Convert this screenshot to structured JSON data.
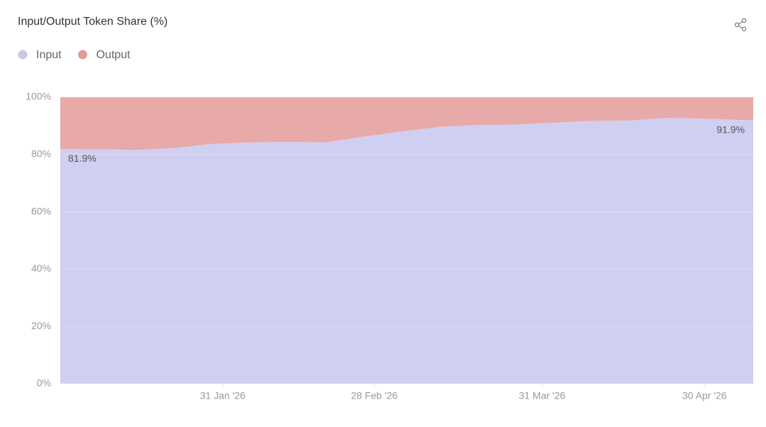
{
  "chart_data": {
    "type": "stacked-area",
    "title": "Input/Output Token Share (%)",
    "x": [
      "2026-01-01",
      "2026-01-08",
      "2026-01-15",
      "2026-01-22",
      "2026-01-29",
      "2026-02-05",
      "2026-02-12",
      "2026-02-19",
      "2026-02-26",
      "2026-03-05",
      "2026-03-12",
      "2026-03-19",
      "2026-03-26",
      "2026-04-02",
      "2026-04-09",
      "2026-04-16",
      "2026-04-23",
      "2026-04-30",
      "2026-05-09"
    ],
    "series": [
      {
        "name": "Input",
        "color": "#cfcff2",
        "legend_color": "#c8c8ef",
        "values": [
          81.9,
          81.8,
          81.6,
          82.2,
          83.7,
          84.2,
          84.4,
          84.2,
          86.2,
          88.0,
          89.6,
          90.3,
          90.4,
          91.1,
          91.7,
          91.8,
          92.8,
          92.5,
          91.9
        ],
        "value_labels": [
          "81.9%",
          null,
          null,
          null,
          null,
          null,
          null,
          null,
          null,
          null,
          null,
          null,
          null,
          null,
          null,
          null,
          null,
          null,
          "91.9%"
        ]
      },
      {
        "name": "Output",
        "color": "#e8aaa8",
        "legend_color": "#e39b98",
        "values": [
          18.1,
          18.2,
          18.4,
          17.8,
          16.3,
          15.8,
          15.6,
          15.8,
          13.8,
          12.0,
          10.4,
          9.7,
          9.6,
          8.9,
          8.3,
          8.2,
          7.2,
          7.5,
          8.1
        ]
      }
    ],
    "xlim": [
      "2026-01-01",
      "2026-05-09"
    ],
    "xticks": [
      {
        "value": "2026-01-31",
        "label": "31 Jan '26"
      },
      {
        "value": "2026-02-28",
        "label": "28 Feb '26"
      },
      {
        "value": "2026-03-31",
        "label": "31 Mar '26"
      },
      {
        "value": "2026-04-30",
        "label": "30 Apr '26"
      }
    ],
    "ylim": [
      0,
      100
    ],
    "yticks": [
      {
        "value": 0,
        "label": "0%"
      },
      {
        "value": 20,
        "label": "20%"
      },
      {
        "value": 40,
        "label": "40%"
      },
      {
        "value": 60,
        "label": "60%"
      },
      {
        "value": 80,
        "label": "80%"
      },
      {
        "value": 100,
        "label": "100%"
      }
    ],
    "grid": true
  }
}
